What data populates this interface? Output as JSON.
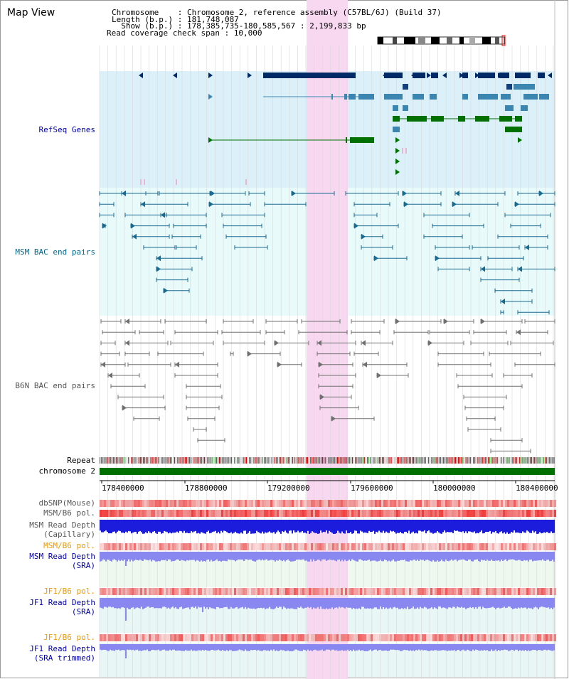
{
  "page": {
    "title": "Map View"
  },
  "header": {
    "line1": "Chromosome    : Chromosome 2, reference assembly (C57BL/6J) (Build 37)",
    "line2": "Length (b.p.) : 181,748,087",
    "line3": "  Show (b.p.) : 178,385,735-180,585,567 : 2,199,833 bp",
    "line4": "Read coverage check span : 10,000"
  },
  "tracks": {
    "refseq": {
      "label": "RefSeq Genes",
      "color": "#0000aa"
    },
    "msm_bac": {
      "label": "MSM BAC end pairs",
      "color": "#006688"
    },
    "b6n_bac": {
      "label": "B6N BAC end pairs",
      "color": "#555555"
    },
    "repeat": {
      "label": "Repeat",
      "color": "#000000"
    },
    "chromosome": {
      "label": "chromosome 2",
      "color": "#000000"
    },
    "dbsnp": {
      "label": "dbSNP(Mouse)",
      "color": "#555555"
    },
    "msm_b6_pol_1": {
      "label": "MSM/B6 pol.",
      "color": "#555555"
    },
    "msm_depth_cap": {
      "label": "MSM Read Depth\n(Capillary)",
      "color": "#555555"
    },
    "msm_b6_pol_2": {
      "label": "MSM/B6 pol.",
      "color": "#ee9900"
    },
    "msm_depth_sra": {
      "label": "MSM Read Depth\n(SRA)",
      "color": "#0000aa"
    },
    "jf1_b6_pol_1": {
      "label": "JF1/B6 pol.",
      "color": "#ee9900"
    },
    "jf1_depth_sra": {
      "label": "JF1 Read Depth\n(SRA)",
      "color": "#0000aa"
    },
    "jf1_b6_pol_2": {
      "label": "JF1/B6 pol.",
      "color": "#ee9900"
    },
    "jf1_depth_trim": {
      "label": "JF1 Read Depth\n(SRA trimmed)",
      "color": "#0000aa"
    }
  },
  "axis": {
    "ticks": [
      "178400000",
      "178800000",
      "179200000",
      "179600000",
      "180000000",
      "180400000"
    ]
  },
  "colors": {
    "refseq_bg": "#dcf0fa",
    "msm_bg": "#e8fafa",
    "highlight": "#f8d8f0",
    "chromosome_bar": "#007000",
    "gene_dark": "#002a66",
    "gene_mid": "#3a86b0",
    "gene_green": "#007000",
    "msm_pair": "#1a6a90",
    "b6n_pair": "#707070",
    "depth_blue": "#1c1cdc",
    "depth_lav": "#8888f0"
  }
}
